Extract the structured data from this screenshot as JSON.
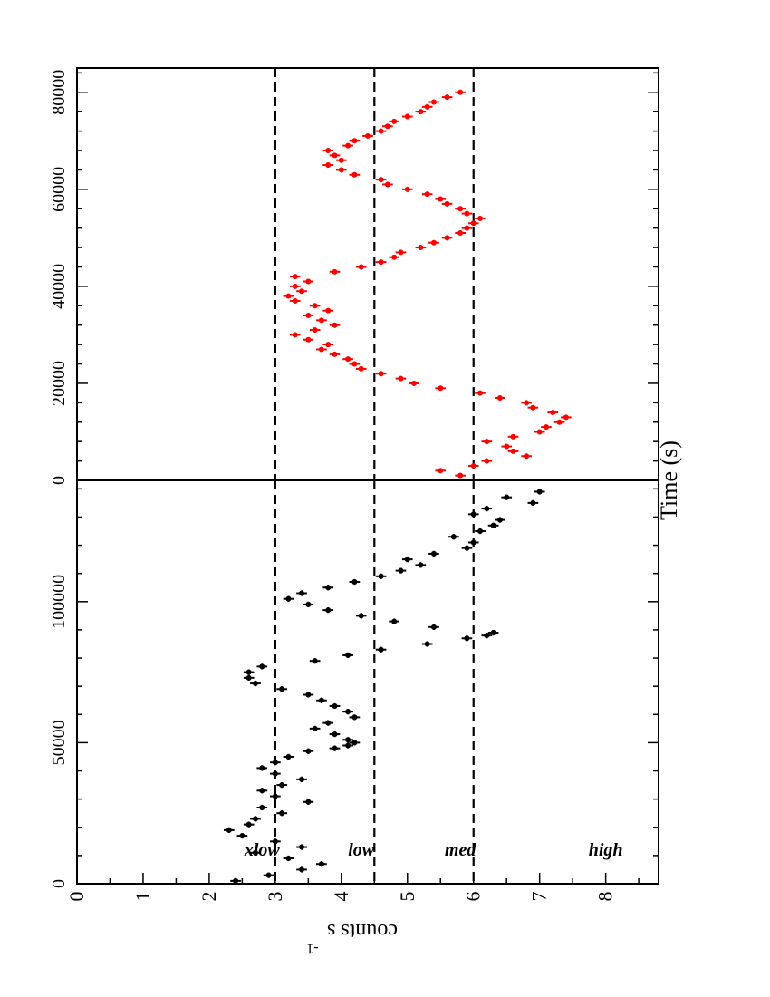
{
  "figure": {
    "xlabel": "Time (s)",
    "ylabel": "counts s",
    "ylabel_sup": "-1"
  },
  "chart_data": [
    {
      "type": "scatter",
      "panel": "left",
      "title": "",
      "xlabel": "Time (s)",
      "ylabel": "counts s-1",
      "xlim": [
        0,
        143000
      ],
      "ylim": [
        0,
        8.8
      ],
      "xticks": [
        0,
        50000,
        100000
      ],
      "yticks": [
        0,
        1,
        2,
        3,
        4,
        5,
        6,
        7,
        8
      ],
      "grid": false,
      "color": "#000000",
      "thresholds": [
        {
          "y": 6.0,
          "label": "med"
        },
        {
          "y": 4.5,
          "label": "low"
        },
        {
          "y": 3.0,
          "label": "xlow"
        }
      ],
      "region_labels": [
        {
          "label": "high",
          "x": 10000,
          "y": 8.0
        },
        {
          "label": "med",
          "x": 10000,
          "y": 5.8
        },
        {
          "label": "low",
          "x": 10000,
          "y": 4.3
        },
        {
          "label": "xlow",
          "x": 10000,
          "y": 2.8
        }
      ],
      "x": [
        1000,
        3000,
        5000,
        7000,
        9000,
        11000,
        13000,
        15000,
        17000,
        19000,
        21000,
        23000,
        25000,
        27000,
        29000,
        31000,
        33000,
        35000,
        37000,
        39000,
        41000,
        43000,
        45000,
        47000,
        48000,
        49000,
        50000,
        51000,
        53000,
        55000,
        57000,
        59000,
        61000,
        63000,
        65000,
        67000,
        69000,
        71000,
        73000,
        75000,
        77000,
        79000,
        81000,
        83000,
        85000,
        87000,
        88000,
        89000,
        91000,
        93000,
        95000,
        97000,
        99000,
        101000,
        103000,
        105000,
        107000,
        109000,
        111000,
        113000,
        115000,
        117000,
        119000,
        121000,
        123000,
        125000,
        127000,
        129000,
        131000,
        133000,
        135000,
        137000,
        139000
      ],
      "y": [
        2.4,
        2.9,
        3.4,
        3.7,
        3.2,
        2.7,
        3.4,
        3.0,
        2.5,
        2.3,
        2.6,
        2.7,
        3.1,
        2.8,
        3.5,
        3.0,
        2.8,
        3.1,
        3.4,
        3.0,
        2.8,
        3.0,
        3.2,
        3.5,
        3.9,
        4.1,
        4.2,
        4.1,
        3.9,
        3.6,
        3.8,
        4.2,
        4.1,
        3.9,
        3.7,
        3.5,
        3.1,
        2.7,
        2.6,
        2.6,
        2.8,
        3.6,
        4.1,
        4.6,
        5.3,
        5.9,
        6.2,
        6.3,
        5.4,
        4.8,
        4.3,
        3.8,
        3.5,
        3.2,
        3.4,
        3.8,
        4.2,
        4.6,
        4.9,
        5.2,
        5.0,
        5.4,
        5.9,
        6.0,
        5.7,
        6.1,
        6.3,
        6.4,
        6.0,
        6.2,
        6.9,
        6.5,
        7.0
      ]
    },
    {
      "type": "scatter",
      "panel": "right",
      "title": "",
      "xlabel": "Time (s)",
      "ylabel": "",
      "xlim": [
        0,
        85000
      ],
      "ylim": [
        0,
        8.8
      ],
      "xticks": [
        0,
        20000,
        40000,
        60000,
        80000
      ],
      "grid": false,
      "color": "#ff0000",
      "thresholds": [
        {
          "y": 6.0
        },
        {
          "y": 4.5
        },
        {
          "y": 3.0
        }
      ],
      "x": [
        1000,
        2000,
        3000,
        4000,
        5000,
        6000,
        7000,
        8000,
        9000,
        10000,
        11000,
        12000,
        13000,
        14000,
        15000,
        16000,
        17000,
        18000,
        19000,
        20000,
        21000,
        22000,
        23000,
        24000,
        25000,
        26000,
        27000,
        28000,
        29000,
        30000,
        31000,
        32000,
        33000,
        34000,
        35000,
        36000,
        37000,
        38000,
        39000,
        40000,
        41000,
        42000,
        43000,
        44000,
        45000,
        46000,
        47000,
        48000,
        49000,
        50000,
        51000,
        52000,
        53000,
        54000,
        55000,
        56000,
        57000,
        58000,
        59000,
        60000,
        61000,
        62000,
        63000,
        64000,
        65000,
        66000,
        67000,
        68000,
        69000,
        70000,
        71000,
        72000,
        73000,
        74000,
        75000,
        76000,
        77000,
        78000,
        79000,
        80000
      ],
      "y": [
        5.8,
        5.5,
        6.0,
        6.2,
        6.8,
        6.6,
        6.5,
        6.2,
        6.6,
        7.0,
        7.1,
        7.3,
        7.4,
        7.2,
        6.9,
        6.8,
        6.4,
        6.1,
        5.5,
        5.1,
        4.9,
        4.6,
        4.3,
        4.2,
        4.1,
        3.9,
        3.7,
        3.8,
        3.5,
        3.3,
        3.6,
        3.9,
        3.7,
        3.5,
        3.8,
        3.6,
        3.3,
        3.2,
        3.4,
        3.3,
        3.5,
        3.3,
        3.9,
        4.3,
        4.6,
        4.8,
        4.9,
        5.2,
        5.4,
        5.6,
        5.8,
        5.9,
        6.0,
        6.1,
        5.9,
        5.8,
        5.6,
        5.5,
        5.3,
        5.0,
        4.7,
        4.6,
        4.2,
        4.0,
        3.8,
        4.0,
        3.9,
        3.8,
        4.1,
        4.2,
        4.4,
        4.6,
        4.7,
        4.8,
        5.0,
        5.2,
        5.3,
        5.4,
        5.6,
        5.8
      ]
    }
  ]
}
